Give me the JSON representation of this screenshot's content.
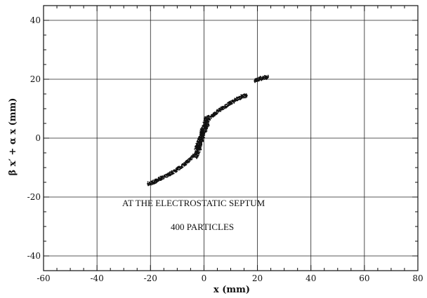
{
  "chart_data": {
    "type": "scatter",
    "title": "",
    "xlabel": "x (mm)",
    "ylabel": "β x′ + α x (mm)",
    "xlim": [
      -60,
      80
    ],
    "ylim": [
      -45,
      45
    ],
    "x_ticks": [
      -60,
      -40,
      -20,
      0,
      20,
      40,
      60,
      80
    ],
    "y_ticks": [
      -40,
      -20,
      0,
      20,
      40
    ],
    "x_tick_labels": [
      "-60",
      "-40",
      "-20",
      "0",
      "20",
      "40",
      "60",
      "80"
    ],
    "y_tick_labels": [
      "-40",
      "-20",
      "0",
      "20",
      "40"
    ],
    "grid": true,
    "annotations": [
      "AT THE ELECTROSTATIC SEPTUM",
      "400 PARTICLES"
    ],
    "series": [
      {
        "marker_color": "#111111",
        "x": [
          -21,
          -19,
          -17,
          -15,
          -13,
          -11,
          -9,
          -7,
          -5,
          -4,
          -3,
          -2,
          -1.5,
          -1,
          -0.5,
          0,
          0.5,
          1,
          2,
          3,
          4,
          6,
          8,
          10,
          12,
          14,
          16,
          19,
          21,
          23,
          24
        ],
        "y": [
          -15.5,
          -15,
          -14,
          -13.2,
          -12.3,
          -11.2,
          -10,
          -8.6,
          -7,
          -6,
          -4.8,
          -3,
          -1.5,
          0,
          1.5,
          3,
          4.5,
          5.5,
          6.5,
          7.5,
          8.3,
          9.6,
          10.8,
          12,
          13,
          14,
          14.5,
          19.5,
          20.2,
          20.6,
          20.8
        ]
      }
    ]
  }
}
